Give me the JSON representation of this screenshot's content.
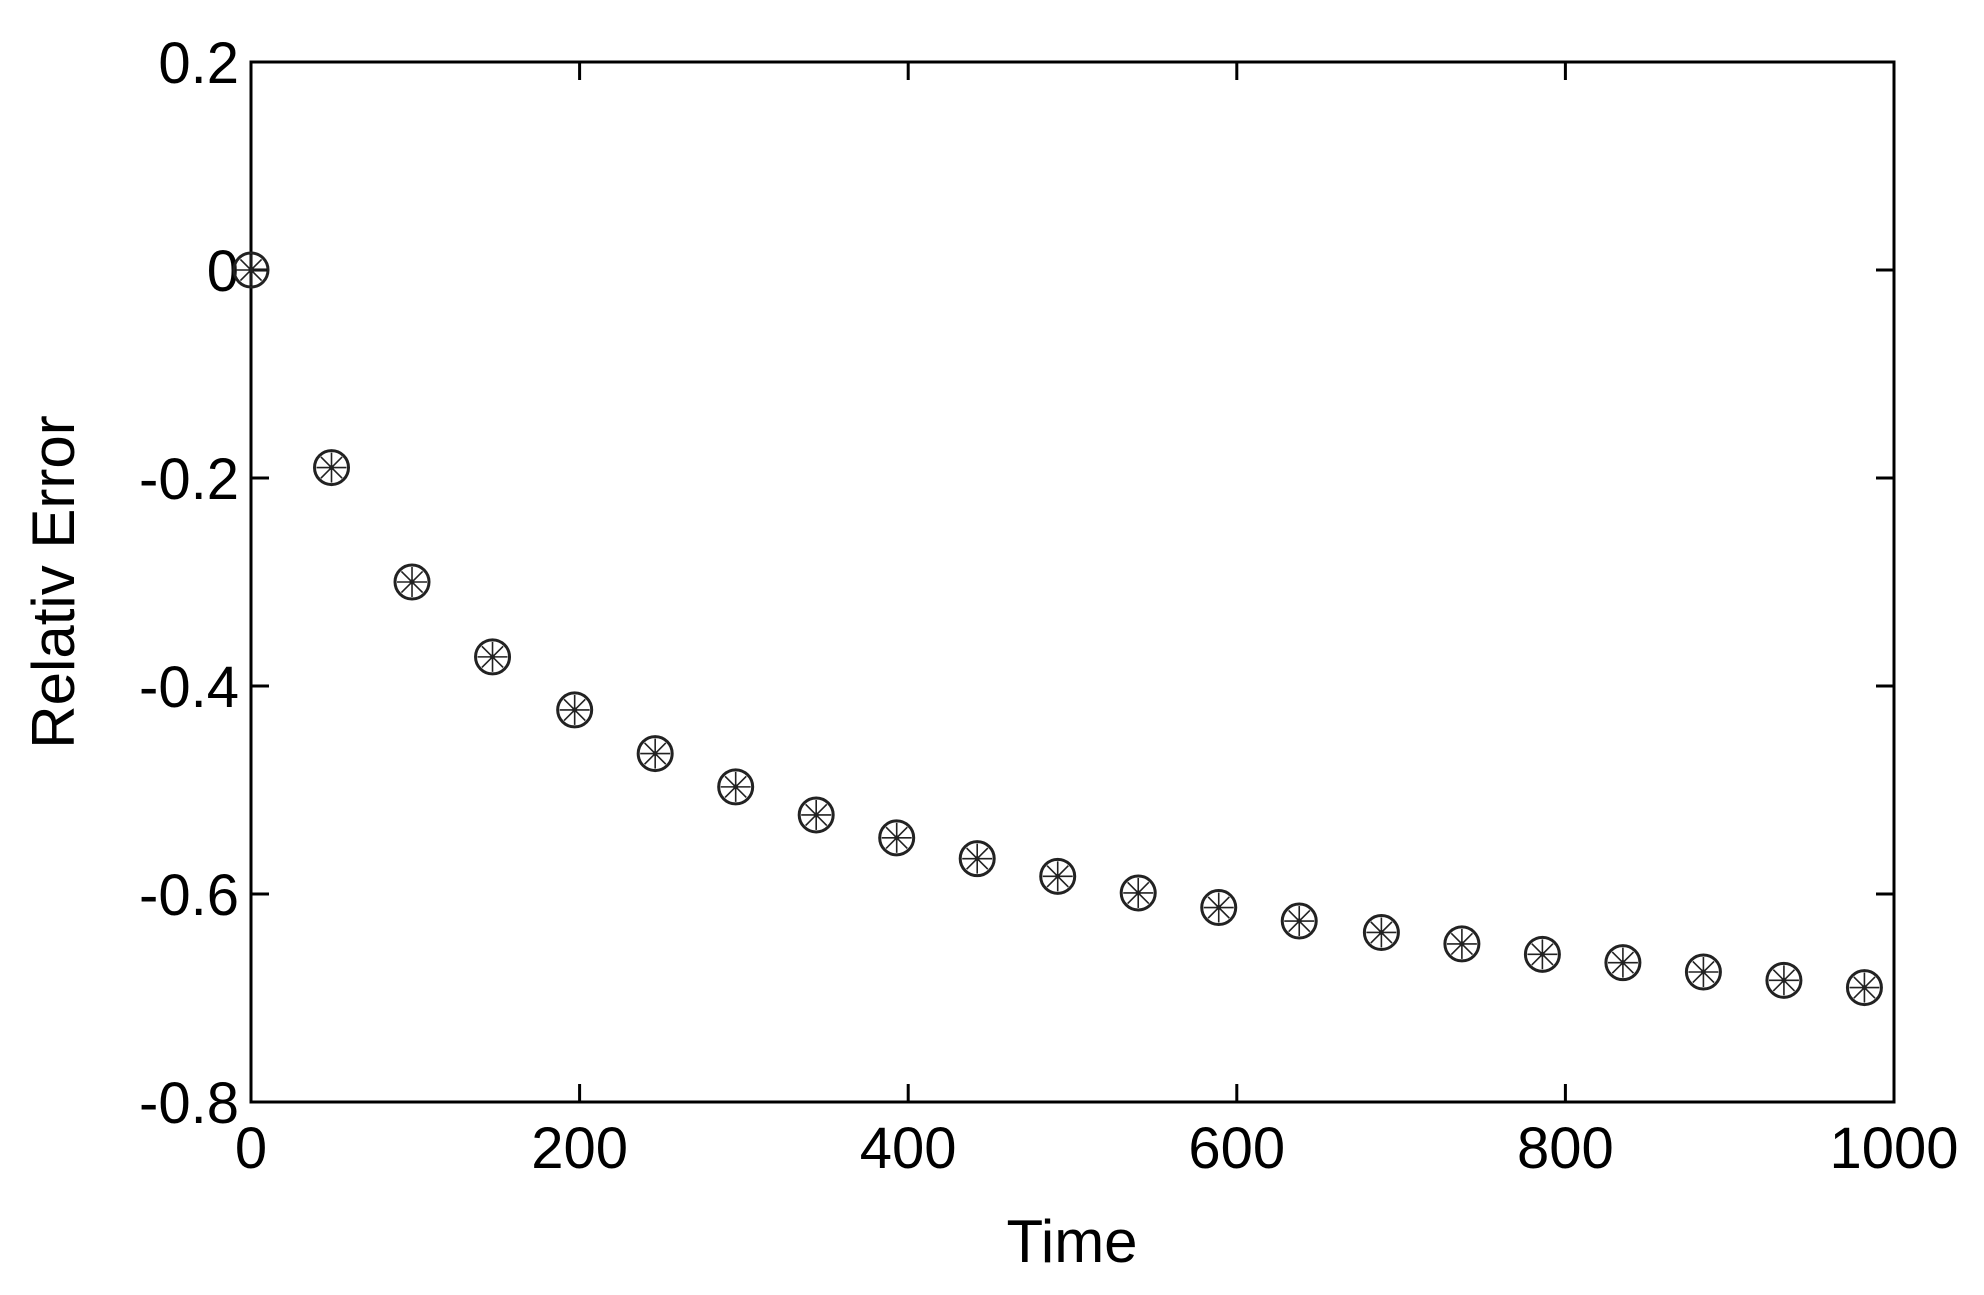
{
  "chart_data": {
    "type": "scatter",
    "title": "",
    "xlabel": "Time",
    "ylabel": "Relativ Error",
    "xlim": [
      0,
      1000
    ],
    "ylim": [
      -0.8,
      0.2
    ],
    "xticks": [
      0,
      200,
      400,
      600,
      800,
      1000
    ],
    "xtick_labels": [
      "0",
      "200",
      "400",
      "600",
      "800",
      "1000"
    ],
    "yticks": [
      0.2,
      0,
      -0.2,
      -0.4,
      -0.6,
      -0.8
    ],
    "ytick_labels": [
      "0.2",
      "0",
      "-0.2",
      "-0.4",
      "-0.6",
      "-0.8"
    ],
    "grid": false,
    "marker": "circle-star",
    "marker_color": "#222222",
    "series": [
      {
        "x": [
          0,
          49,
          98,
          147,
          197,
          246,
          295,
          344,
          393,
          442,
          491,
          540,
          589,
          638,
          688,
          737,
          786,
          835,
          884,
          933,
          982
        ],
        "y": [
          0.0,
          -0.19,
          -0.3,
          -0.372,
          -0.423,
          -0.465,
          -0.497,
          -0.524,
          -0.546,
          -0.566,
          -0.583,
          -0.599,
          -0.613,
          -0.626,
          -0.637,
          -0.648,
          -0.658,
          -0.666,
          -0.675,
          -0.683,
          -0.69
        ]
      }
    ]
  }
}
